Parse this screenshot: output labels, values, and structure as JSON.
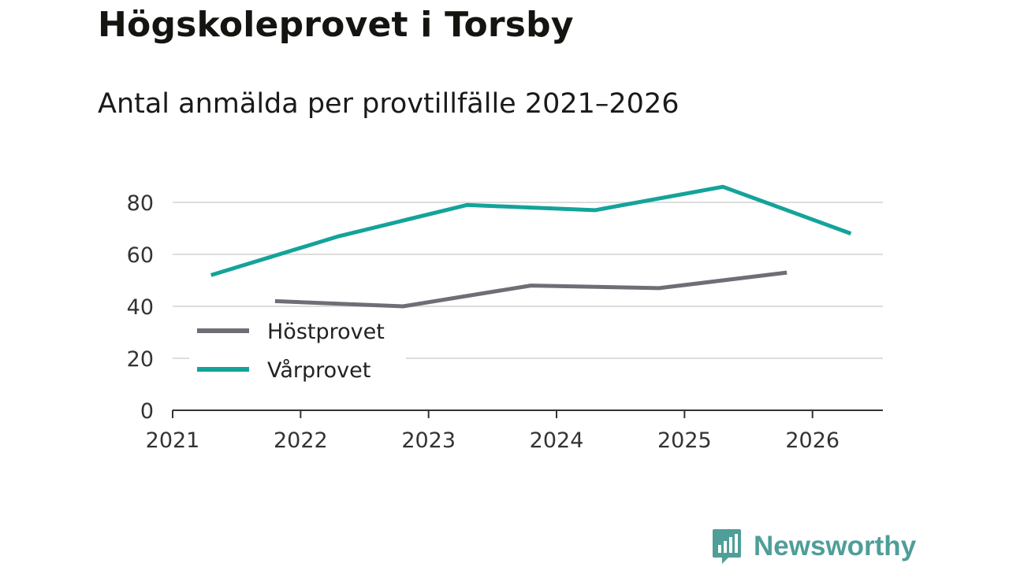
{
  "title": "Högskoleprovet i Torsby",
  "subtitle": "Antal anmälda per provtillfälle 2021–2026",
  "brand": {
    "name": "Newsworthy",
    "color": "#4f9e98",
    "icon": "bar-chart-speech-bubble-icon"
  },
  "colors": {
    "hostprovet": "#6e6e76",
    "varprovet": "#14a39a",
    "grid": "#dddddd",
    "axis": "#333333"
  },
  "chart_data": {
    "type": "line",
    "title": "Högskoleprovet i Torsby",
    "subtitle": "Antal anmälda per provtillfälle 2021–2026",
    "xlabel": "",
    "ylabel": "",
    "xlim": [
      2021,
      2026.55
    ],
    "ylim": [
      0,
      80
    ],
    "x_ticks": [
      "2021",
      "2022",
      "2023",
      "2024",
      "2025",
      "2026"
    ],
    "y_ticks": [
      "0",
      "20",
      "40",
      "60",
      "80"
    ],
    "grid": true,
    "legend_position": "lower-left",
    "series": [
      {
        "name": "Höstprovet",
        "x": [
          2021.8,
          2022.8,
          2023.8,
          2024.8,
          2025.8
        ],
        "values": [
          42,
          40,
          48,
          47,
          53
        ]
      },
      {
        "name": "Vårprovet",
        "x": [
          2021.3,
          2022.3,
          2023.3,
          2024.3,
          2025.3,
          2026.3
        ],
        "values": [
          52,
          67,
          79,
          77,
          86,
          68
        ]
      }
    ]
  }
}
